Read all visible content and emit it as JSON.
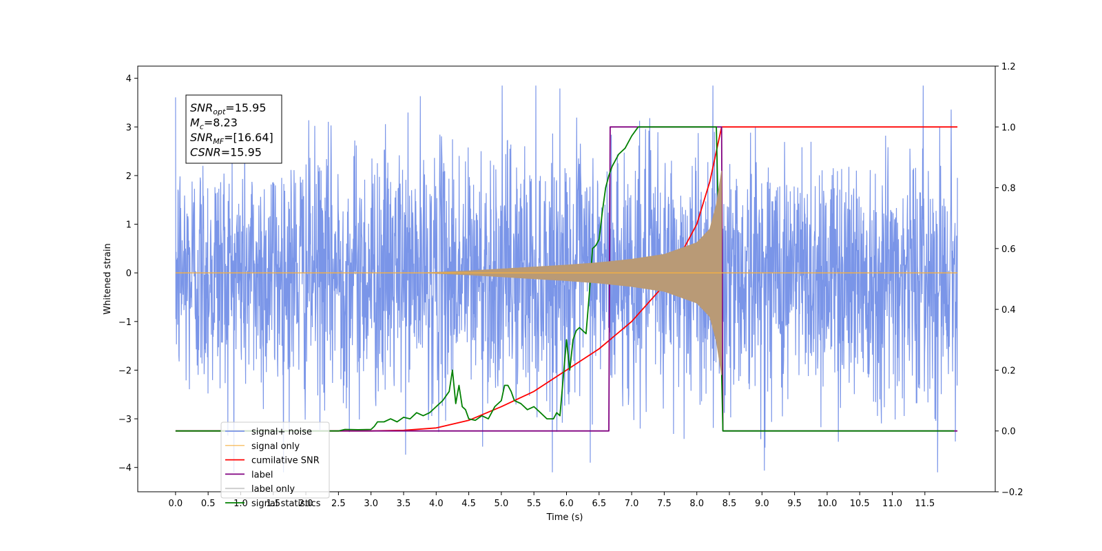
{
  "chart_data": {
    "type": "line",
    "xlabel": "Time (s)",
    "ylabel": "Whitened strain",
    "xlim": [
      -0.58,
      12.58
    ],
    "ylim": [
      -4.5,
      4.25
    ],
    "ylim_right": [
      -0.2,
      1.2
    ],
    "x_ticks": [
      0.0,
      0.5,
      1.0,
      1.5,
      2.0,
      2.5,
      3.0,
      3.5,
      4.0,
      4.5,
      5.0,
      5.5,
      6.0,
      6.5,
      7.0,
      7.5,
      8.0,
      8.5,
      9.0,
      9.5,
      10.0,
      10.5,
      11.0,
      11.5
    ],
    "x_tick_labels": [
      "0.0",
      "0.5",
      "1.0",
      "1.5",
      "2.0",
      "2.5",
      "3.0",
      "3.5",
      "4.0",
      "4.5",
      "5.0",
      "5.5",
      "6.0",
      "6.5",
      "7.0",
      "7.5",
      "8.0",
      "8.5",
      "9.0",
      "9.5",
      "10.0",
      "10.5",
      "11.0",
      "11.5"
    ],
    "y_ticks_left": [
      -4,
      -3,
      -2,
      -1,
      0,
      1,
      2,
      3,
      4
    ],
    "y_tick_labels_left": [
      "−4",
      "−3",
      "−2",
      "−1",
      "0",
      "1",
      "2",
      "3",
      "4"
    ],
    "y_ticks_right": [
      -0.2,
      0.0,
      0.2,
      0.4,
      0.6,
      0.8,
      1.0,
      1.2
    ],
    "y_tick_labels_right": [
      "−0.2",
      "0.0",
      "0.2",
      "0.4",
      "0.6",
      "0.8",
      "1.0",
      "1.2"
    ],
    "grid": false,
    "legend_position": "lower-left",
    "annotation": {
      "lines": [
        {
          "base": "SNR",
          "sub": "opt",
          "value": "=15.95"
        },
        {
          "base": "M",
          "sub": "c",
          "value": "=8.23"
        },
        {
          "base": "SNR",
          "sub": "MF",
          "value": "=[16.64]"
        },
        {
          "base": "CSNR",
          "sub": "",
          "value": "=15.95"
        }
      ]
    },
    "series": [
      {
        "name": "signal+ noise",
        "axis": "left",
        "color": "#7a95e8",
        "style": "noise",
        "x_range": [
          0.0,
          12.0
        ],
        "typical_amplitude": 1.3,
        "peak_range": [
          -4.1,
          3.85
        ],
        "signal_window": [
          4.0,
          8.4
        ]
      },
      {
        "name": "signal only",
        "axis": "left",
        "color": "#f5b041",
        "style": "chirp",
        "x_range": [
          0.0,
          12.0
        ],
        "chirp_start": 3.8,
        "chirp_end": 8.38,
        "envelope_x": [
          3.8,
          4.5,
          5.0,
          5.5,
          6.0,
          6.5,
          7.0,
          7.5,
          8.0,
          8.2,
          8.3,
          8.38
        ],
        "envelope_y": [
          0.0,
          0.04,
          0.08,
          0.12,
          0.16,
          0.21,
          0.28,
          0.38,
          0.62,
          0.9,
          1.4,
          2.1
        ]
      },
      {
        "name": "cumilative SNR",
        "axis": "right",
        "color": "#ff0000",
        "x": [
          0.0,
          3.0,
          3.5,
          4.0,
          4.5,
          5.0,
          5.5,
          6.0,
          6.5,
          7.0,
          7.5,
          8.0,
          8.2,
          8.3,
          8.38,
          8.4,
          12.0
        ],
        "y": [
          0.0,
          0.0,
          0.002,
          0.01,
          0.035,
          0.08,
          0.13,
          0.2,
          0.27,
          0.36,
          0.48,
          0.68,
          0.82,
          0.92,
          1.0,
          1.0,
          1.0
        ]
      },
      {
        "name": "label",
        "axis": "right",
        "color": "#800080",
        "x": [
          0.0,
          6.65,
          6.67,
          8.38,
          8.4,
          12.0
        ],
        "y": [
          0.0,
          0.0,
          1.0,
          1.0,
          0.0,
          0.0
        ]
      },
      {
        "name": "label only",
        "axis": "right",
        "color": "#cccccc",
        "x": [],
        "y": []
      },
      {
        "name": "signal statistics",
        "axis": "right",
        "color": "#008000",
        "x": [
          0.0,
          2.5,
          2.6,
          2.8,
          3.0,
          3.05,
          3.1,
          3.2,
          3.3,
          3.4,
          3.5,
          3.6,
          3.7,
          3.8,
          3.9,
          4.0,
          4.1,
          4.2,
          4.25,
          4.3,
          4.35,
          4.4,
          4.45,
          4.5,
          4.6,
          4.7,
          4.8,
          4.9,
          5.0,
          5.05,
          5.1,
          5.15,
          5.2,
          5.3,
          5.4,
          5.5,
          5.6,
          5.7,
          5.8,
          5.85,
          5.9,
          6.0,
          6.05,
          6.1,
          6.15,
          6.2,
          6.3,
          6.35,
          6.4,
          6.45,
          6.5,
          6.55,
          6.6,
          6.65,
          6.7,
          6.75,
          6.8,
          6.9,
          7.0,
          7.1,
          7.2,
          7.4,
          7.6,
          8.0,
          8.3,
          8.35,
          8.4,
          8.45,
          11.0,
          11.95
        ],
        "y": [
          0.0,
          0.0,
          0.005,
          0.004,
          0.005,
          0.015,
          0.03,
          0.03,
          0.04,
          0.03,
          0.045,
          0.04,
          0.06,
          0.05,
          0.06,
          0.08,
          0.1,
          0.13,
          0.2,
          0.09,
          0.15,
          0.08,
          0.07,
          0.04,
          0.035,
          0.05,
          0.04,
          0.08,
          0.1,
          0.15,
          0.15,
          0.13,
          0.1,
          0.09,
          0.07,
          0.08,
          0.06,
          0.04,
          0.04,
          0.06,
          0.05,
          0.3,
          0.2,
          0.3,
          0.33,
          0.34,
          0.32,
          0.45,
          0.6,
          0.61,
          0.63,
          0.72,
          0.8,
          0.84,
          0.87,
          0.89,
          0.91,
          0.93,
          0.97,
          1.0,
          1.0,
          1.0,
          1.0,
          1.0,
          1.0,
          0.5,
          0.0,
          0.0,
          0.0,
          0.0
        ]
      }
    ]
  }
}
